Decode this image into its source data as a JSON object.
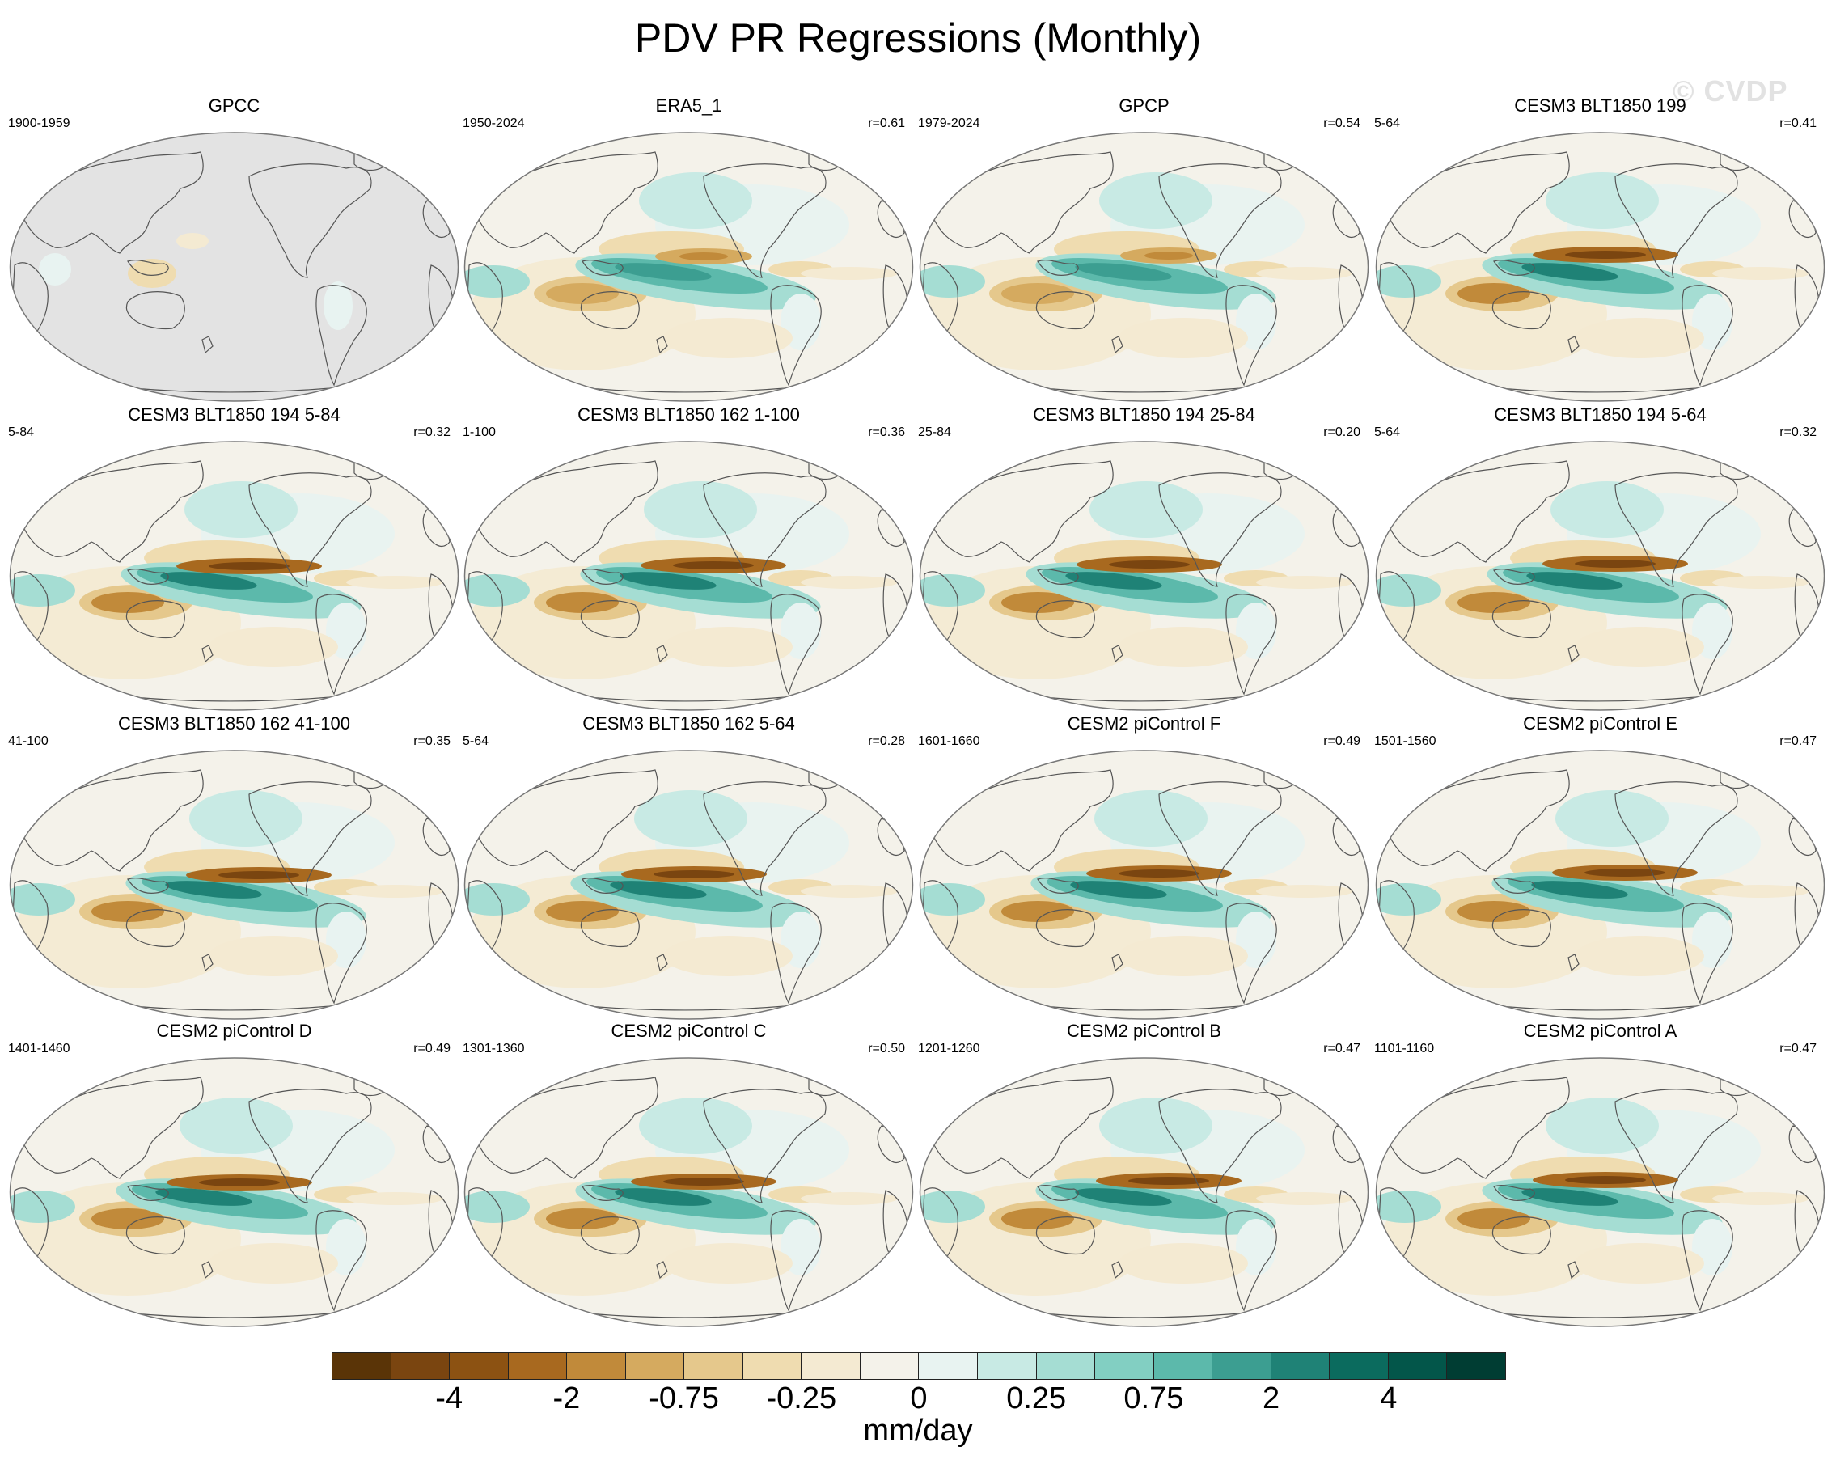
{
  "title": "PDV PR Regressions (Monthly)",
  "watermark": "© CVDP",
  "panels": [
    {
      "name": "GPCC",
      "period": "1900-1959",
      "corr": "",
      "missing": true
    },
    {
      "name": "ERA5_1",
      "period": "1950-2024",
      "corr": "r=0.61"
    },
    {
      "name": "GPCP",
      "period": "1979-2024",
      "corr": "r=0.54"
    },
    {
      "name": "CESM3 BLT1850 199",
      "period": "5-64",
      "corr": "r=0.41"
    },
    {
      "name": "CESM3 BLT1850 194 5-84",
      "period": "5-84",
      "corr": "r=0.32"
    },
    {
      "name": "CESM3 BLT1850 162 1-100",
      "period": "1-100",
      "corr": "r=0.36"
    },
    {
      "name": "CESM3 BLT1850 194 25-84",
      "period": "25-84",
      "corr": "r=0.20"
    },
    {
      "name": "CESM3 BLT1850 194 5-64",
      "period": "5-64",
      "corr": "r=0.32"
    },
    {
      "name": "CESM3 BLT1850 162 41-100",
      "period": "41-100",
      "corr": "r=0.35"
    },
    {
      "name": "CESM3 BLT1850 162 5-64",
      "period": "5-64",
      "corr": "r=0.28"
    },
    {
      "name": "CESM2 piControl F",
      "period": "1601-1660",
      "corr": "r=0.49"
    },
    {
      "name": "CESM2 piControl E",
      "period": "1501-1560",
      "corr": "r=0.47"
    },
    {
      "name": "CESM2 piControl D",
      "period": "1401-1460",
      "corr": "r=0.49"
    },
    {
      "name": "CESM2 piControl C",
      "period": "1301-1360",
      "corr": "r=0.50"
    },
    {
      "name": "CESM2 piControl B",
      "period": "1201-1260",
      "corr": "r=0.47"
    },
    {
      "name": "CESM2 piControl A",
      "period": "1101-1160",
      "corr": "r=0.47"
    }
  ],
  "colorbar": {
    "colors": [
      "#5a3407",
      "#7a4510",
      "#8c5212",
      "#a8691f",
      "#c18a3a",
      "#d5aa5f",
      "#e5c88c",
      "#efdcb0",
      "#f4ead2",
      "#f4f2ea",
      "#e8f3f1",
      "#c8eae4",
      "#a5ddd3",
      "#82cfc2",
      "#5cb9ab",
      "#3c9e91",
      "#1f8276",
      "#0b6b5e",
      "#03564a",
      "#003d33"
    ],
    "labels": [
      "-4",
      "-2",
      "-0.75",
      "-0.25",
      "0",
      "0.25",
      "0.75",
      "2",
      "4"
    ],
    "units": "mm/day"
  }
}
